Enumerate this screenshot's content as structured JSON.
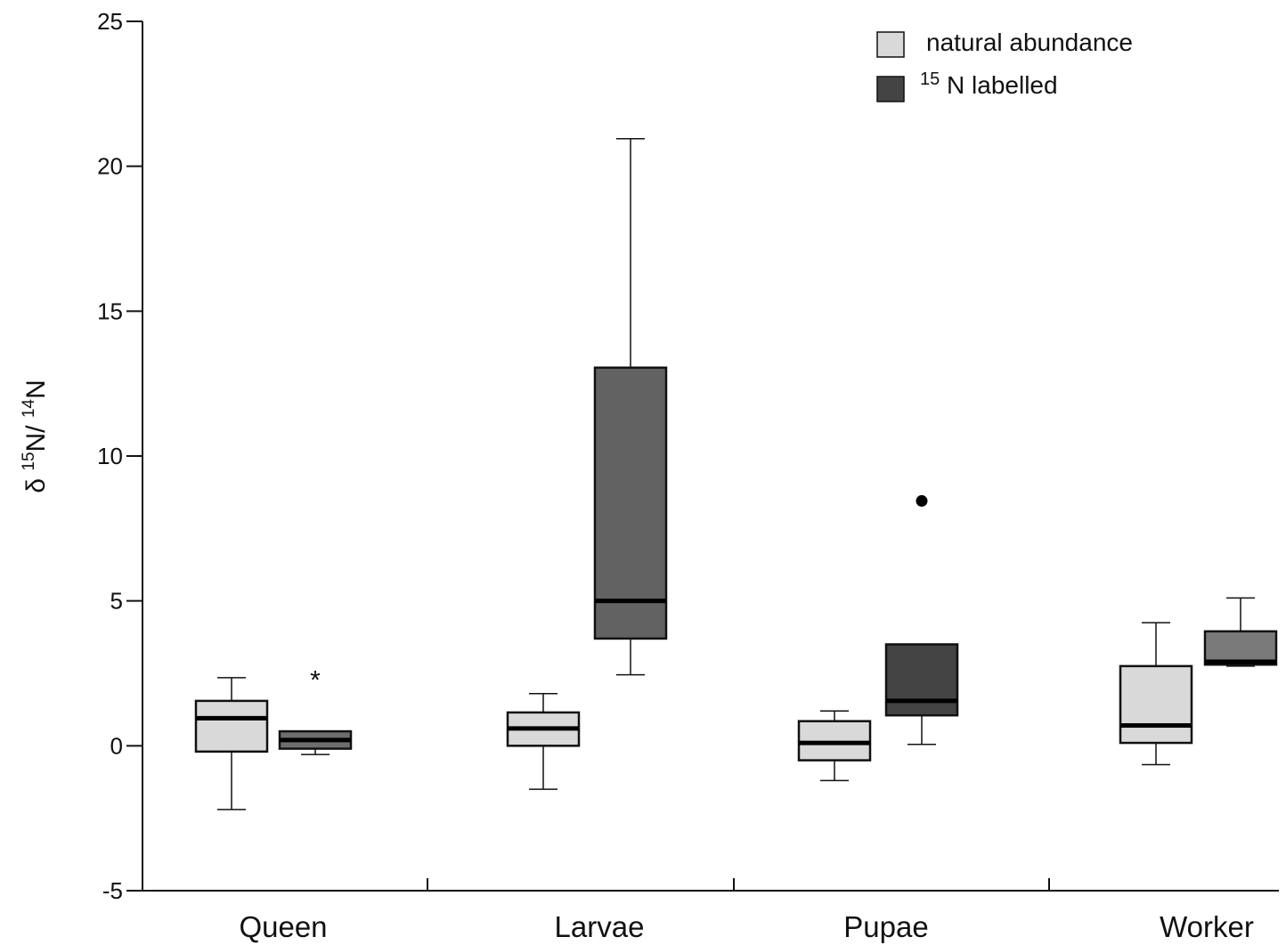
{
  "chart_data": {
    "type": "box",
    "categories": [
      "Queen",
      "Larvae",
      "Pupae",
      "Worker"
    ],
    "ylim": [
      -5,
      25
    ],
    "yticks": [
      -5,
      0,
      5,
      10,
      15,
      20,
      25
    ],
    "ytick_labels": [
      "-5",
      "0",
      "5",
      "10",
      "15",
      "20",
      "25"
    ],
    "ylabel": {
      "prefix": "δ ",
      "sup1": "15",
      "mid": "N/ ",
      "sup2": "14",
      "suffix": "N"
    },
    "xlabel": "",
    "grid": false,
    "legend_position": "top-right",
    "series": [
      {
        "name": "natural abundance",
        "color": "#d9d9d9",
        "boxes": [
          {
            "category": "Queen",
            "whisker_low": -2.2,
            "q1": -0.2,
            "median": 0.95,
            "q3": 1.55,
            "whisker_high": 2.35
          },
          {
            "category": "Larvae",
            "whisker_low": -1.5,
            "q1": 0.0,
            "median": 0.6,
            "q3": 1.15,
            "whisker_high": 1.8
          },
          {
            "category": "Pupae",
            "whisker_low": -1.2,
            "q1": -0.5,
            "median": 0.1,
            "q3": 0.85,
            "whisker_high": 1.2
          },
          {
            "category": "Worker",
            "whisker_low": -0.65,
            "q1": 0.1,
            "median": 0.7,
            "q3": 2.75,
            "whisker_high": 4.25
          }
        ]
      },
      {
        "name": "15N labelled",
        "legend_sup": "15",
        "legend_text": " N labelled",
        "color": "#444444",
        "boxes": [
          {
            "category": "Queen",
            "whisker_low": -0.3,
            "q1": -0.1,
            "median": 0.2,
            "q3": 0.5,
            "whisker_high": 0.5,
            "box_color": "#6e6e6e",
            "annotation": "*",
            "annotation_y": 2.4
          },
          {
            "category": "Larvae",
            "whisker_low": 2.45,
            "q1": 3.7,
            "median": 5.0,
            "q3": 13.05,
            "whisker_high": 20.95,
            "box_color": "#626262"
          },
          {
            "category": "Pupae",
            "whisker_low": 0.05,
            "q1": 1.05,
            "median": 1.55,
            "q3": 3.5,
            "whisker_high": 3.5,
            "box_color": "#444444",
            "outliers": [
              8.45
            ]
          },
          {
            "category": "Worker",
            "whisker_low": 2.75,
            "q1": 2.8,
            "median": 2.9,
            "q3": 3.95,
            "whisker_high": 5.1,
            "box_color": "#7a7a7a"
          }
        ]
      }
    ]
  }
}
